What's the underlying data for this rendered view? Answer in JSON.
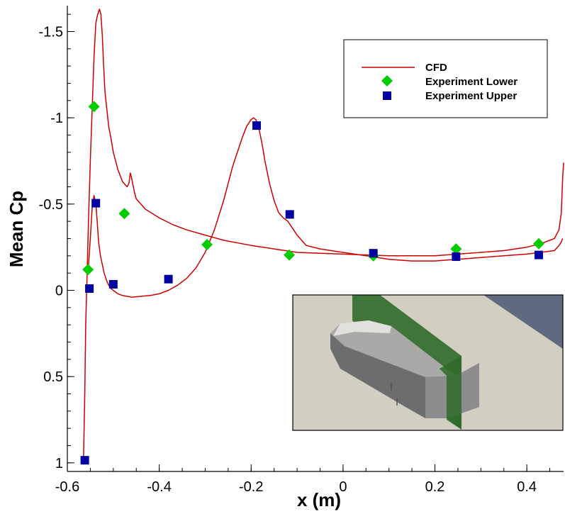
{
  "chart_data": {
    "type": "line",
    "title": "",
    "xlabel": "x (m)",
    "ylabel": "Mean Cp",
    "xlim": [
      -0.6,
      0.48
    ],
    "ylim": [
      -1.65,
      1.05
    ],
    "y_inverted": true,
    "grid": false,
    "legend_position": "top-right",
    "x_ticks": [
      -0.6,
      -0.4,
      -0.2,
      0,
      0.2,
      0.4
    ],
    "x_tick_labels": [
      "-0.6",
      "-0.4",
      "-0.2",
      "0",
      "0.2",
      "0.4"
    ],
    "y_ticks": [
      -1.5,
      -1,
      -0.5,
      0,
      0.5,
      1
    ],
    "y_tick_labels": [
      "-1.5",
      "-1",
      "-0.5",
      "0",
      "0.5",
      "1"
    ],
    "series": [
      {
        "name": "CFD",
        "kind": "line",
        "color": "#cc0000",
        "segments": [
          {
            "x": [
              -0.565,
              -0.562,
              -0.56,
              -0.557,
              -0.554,
              -0.55,
              -0.546,
              -0.542,
              -0.538,
              -0.534,
              -0.53,
              -0.527,
              -0.524,
              -0.521,
              -0.518,
              -0.514,
              -0.51,
              -0.505,
              -0.5,
              -0.49,
              -0.48,
              -0.47,
              -0.466,
              -0.463,
              -0.46,
              -0.455,
              -0.45,
              -0.43,
              -0.4,
              -0.37,
              -0.34,
              -0.3,
              -0.26,
              -0.2,
              -0.15,
              -0.1,
              -0.05,
              0,
              0.05,
              0.1,
              0.15,
              0.2,
              0.25,
              0.3,
              0.35,
              0.4,
              0.43,
              0.46,
              0.47,
              0.475,
              0.478,
              0.48
            ],
            "y": [
              1.0,
              0.6,
              0.2,
              -0.1,
              -0.4,
              -0.75,
              -1.05,
              -1.35,
              -1.55,
              -1.6,
              -1.63,
              -1.6,
              -1.48,
              -1.3,
              -1.15,
              -1.05,
              -0.95,
              -0.88,
              -0.8,
              -0.7,
              -0.63,
              -0.6,
              -0.62,
              -0.68,
              -0.65,
              -0.58,
              -0.53,
              -0.47,
              -0.42,
              -0.38,
              -0.35,
              -0.32,
              -0.29,
              -0.26,
              -0.24,
              -0.22,
              -0.215,
              -0.21,
              -0.205,
              -0.2,
              -0.2,
              -0.2,
              -0.21,
              -0.22,
              -0.23,
              -0.25,
              -0.27,
              -0.3,
              -0.35,
              -0.45,
              -0.65,
              -0.74
            ]
          },
          {
            "x": [
              -0.555,
              -0.55,
              -0.546,
              -0.542,
              -0.538,
              -0.535,
              -0.532,
              -0.528,
              -0.524,
              -0.52,
              -0.515,
              -0.51,
              -0.505,
              -0.5,
              -0.49,
              -0.48,
              -0.47,
              -0.46,
              -0.44,
              -0.42,
              -0.4,
              -0.38,
              -0.36,
              -0.34,
              -0.32,
              -0.3,
              -0.28,
              -0.26,
              -0.24,
              -0.22,
              -0.21,
              -0.2,
              -0.195,
              -0.19,
              -0.185,
              -0.18,
              -0.175,
              -0.17,
              -0.16,
              -0.15,
              -0.14,
              -0.13,
              -0.12,
              -0.1,
              -0.08,
              -0.05,
              0,
              0.05,
              0.1,
              0.15,
              0.2,
              0.25,
              0.3,
              0.35,
              0.4,
              0.43,
              0.46,
              0.47,
              0.475,
              0.478
            ],
            "y": [
              -0.1,
              -0.3,
              -0.48,
              -0.55,
              -0.5,
              -0.4,
              -0.28,
              -0.2,
              -0.15,
              -0.1,
              -0.06,
              -0.03,
              -0.01,
              0.0,
              0.02,
              0.03,
              0.035,
              0.04,
              0.035,
              0.03,
              0.02,
              0.0,
              -0.03,
              -0.07,
              -0.13,
              -0.22,
              -0.35,
              -0.52,
              -0.72,
              -0.88,
              -0.95,
              -0.99,
              -1.0,
              -0.99,
              -0.96,
              -0.9,
              -0.83,
              -0.75,
              -0.62,
              -0.52,
              -0.45,
              -0.42,
              -0.4,
              -0.32,
              -0.26,
              -0.24,
              -0.22,
              -0.2,
              -0.18,
              -0.17,
              -0.17,
              -0.18,
              -0.19,
              -0.2,
              -0.21,
              -0.22,
              -0.23,
              -0.26,
              -0.28,
              -0.3
            ]
          }
        ]
      },
      {
        "name": "Experiment Lower",
        "kind": "scatter",
        "marker": "diamond",
        "color": "#00cc00",
        "x": [
          -0.555,
          -0.542,
          -0.476,
          -0.296,
          -0.117,
          0.066,
          0.246,
          0.426
        ],
        "y": [
          -0.12,
          -1.065,
          -0.445,
          -0.265,
          -0.205,
          -0.2,
          -0.24,
          -0.27
        ]
      },
      {
        "name": "Experiment Upper",
        "kind": "scatter",
        "marker": "square",
        "color": "#0000a0",
        "x": [
          -0.562,
          -0.552,
          -0.538,
          -0.5,
          -0.38,
          -0.188,
          -0.116,
          0.066,
          0.246,
          0.426
        ],
        "y": [
          0.985,
          -0.01,
          -0.505,
          -0.035,
          -0.065,
          -0.955,
          -0.44,
          -0.215,
          -0.195,
          -0.205
        ]
      }
    ],
    "inset": {
      "description_icon": "3d-body-render",
      "colors": {
        "floor": "#d2cec1",
        "body": "#6e7072",
        "plane": "#2f6b2a",
        "sky": "#5f6a80"
      }
    }
  }
}
